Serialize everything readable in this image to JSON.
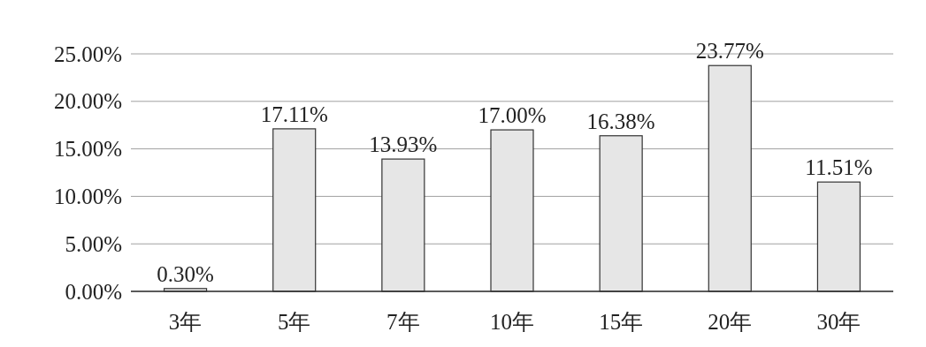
{
  "chart_data": {
    "type": "bar",
    "categories": [
      "3年",
      "5年",
      "7年",
      "10年",
      "15年",
      "20年",
      "30年"
    ],
    "values": [
      0.3,
      17.11,
      13.93,
      17.0,
      16.38,
      23.77,
      11.51
    ],
    "value_labels": [
      "0.30%",
      "17.11%",
      "13.93%",
      "17.00%",
      "16.38%",
      "23.77%",
      "11.51%"
    ],
    "color": "#e6e6e6",
    "ylim": [
      0,
      25
    ],
    "yticks": [
      {
        "value": 0,
        "label": "0.00%"
      },
      {
        "value": 5,
        "label": "5.00%"
      },
      {
        "value": 10,
        "label": "10.00%"
      },
      {
        "value": 15,
        "label": "15.00%"
      },
      {
        "value": 20,
        "label": "20.00%"
      },
      {
        "value": 25,
        "label": "25.00%"
      }
    ],
    "grid": "y"
  }
}
